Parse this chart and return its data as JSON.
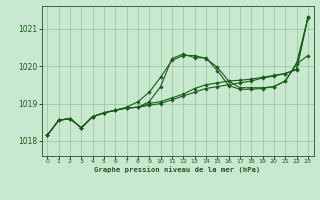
{
  "background_color": "#c8e8d0",
  "grid_color": "#8aba8a",
  "line_color": "#1a5c1a",
  "title": "Graphe pression niveau de la mer (hPa)",
  "xlim": [
    -0.5,
    23.5
  ],
  "ylim": [
    1017.6,
    1021.6
  ],
  "yticks": [
    1018,
    1019,
    1020,
    1021
  ],
  "xtick_labels": [
    "0",
    "1",
    "2",
    "3",
    "4",
    "5",
    "6",
    "7",
    "8",
    "9",
    "10",
    "11",
    "12",
    "13",
    "14",
    "15",
    "16",
    "17",
    "18",
    "19",
    "20",
    "21",
    "22",
    "23"
  ],
  "xtick_positions": [
    0,
    1,
    2,
    3,
    4,
    5,
    6,
    7,
    8,
    9,
    10,
    11,
    12,
    13,
    14,
    15,
    16,
    17,
    18,
    19,
    20,
    21,
    22,
    23
  ],
  "series": [
    [
      1018.15,
      1018.55,
      1018.6,
      1018.35,
      1018.65,
      1018.75,
      1018.82,
      1018.88,
      1018.9,
      1018.95,
      1019.0,
      1019.1,
      1019.2,
      1019.3,
      1019.4,
      1019.45,
      1019.5,
      1019.55,
      1019.6,
      1019.68,
      1019.73,
      1019.8,
      1019.9,
      1021.3
    ],
    [
      1018.15,
      1018.55,
      1018.6,
      1018.35,
      1018.65,
      1018.75,
      1018.82,
      1018.9,
      1019.05,
      1019.3,
      1019.7,
      1020.15,
      1020.28,
      1020.28,
      1020.2,
      1019.97,
      1019.6,
      1019.42,
      1019.42,
      1019.42,
      1019.45,
      1019.6,
      1020.08,
      1021.28
    ],
    [
      1018.15,
      1018.55,
      1018.6,
      1018.35,
      1018.65,
      1018.75,
      1018.82,
      1018.88,
      1018.9,
      1019.0,
      1019.05,
      1019.15,
      1019.25,
      1019.4,
      1019.5,
      1019.55,
      1019.6,
      1019.62,
      1019.65,
      1019.7,
      1019.75,
      1019.8,
      1019.92,
      1021.3
    ],
    [
      1018.15,
      1018.55,
      1018.6,
      1018.35,
      1018.65,
      1018.75,
      1018.82,
      1018.88,
      1018.9,
      1019.05,
      1019.45,
      1020.2,
      1020.32,
      1020.22,
      1020.22,
      1019.88,
      1019.48,
      1019.38,
      1019.38,
      1019.4,
      1019.45,
      1019.6,
      1020.05,
      1020.28
    ]
  ]
}
